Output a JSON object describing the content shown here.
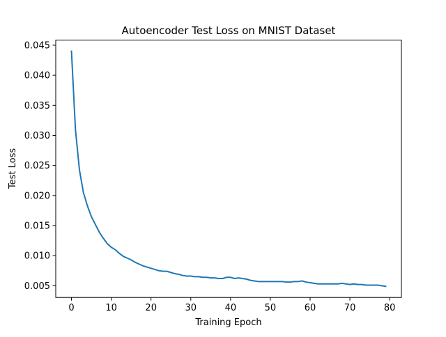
{
  "chart_data": {
    "type": "line",
    "title": "Autoencoder Test Loss on MNIST Dataset",
    "xlabel": "Training Epoch",
    "ylabel": "Test Loss",
    "xlim": [
      -3.95,
      82.95
    ],
    "ylim": [
      0.00305,
      0.04585
    ],
    "xticks": [
      0,
      10,
      20,
      30,
      40,
      50,
      60,
      70,
      80
    ],
    "xtick_labels": [
      "0",
      "10",
      "20",
      "30",
      "40",
      "50",
      "60",
      "70",
      "80"
    ],
    "yticks": [
      0.005,
      0.01,
      0.015,
      0.02,
      0.025,
      0.03,
      0.035,
      0.04,
      0.045
    ],
    "ytick_labels": [
      "0.005",
      "0.010",
      "0.015",
      "0.020",
      "0.025",
      "0.030",
      "0.035",
      "0.040",
      "0.045"
    ],
    "grid": false,
    "series": [
      {
        "color": "#1f77b4",
        "x": [
          0,
          1,
          2,
          3,
          4,
          5,
          6,
          7,
          8,
          9,
          10,
          11,
          12,
          13,
          14,
          15,
          16,
          17,
          18,
          19,
          20,
          21,
          22,
          23,
          24,
          25,
          26,
          27,
          28,
          29,
          30,
          31,
          32,
          33,
          34,
          35,
          36,
          37,
          38,
          39,
          40,
          41,
          42,
          43,
          44,
          45,
          46,
          47,
          48,
          49,
          50,
          51,
          52,
          53,
          54,
          55,
          56,
          57,
          58,
          59,
          60,
          61,
          62,
          63,
          64,
          65,
          66,
          67,
          68,
          69,
          70,
          71,
          72,
          73,
          74,
          75,
          76,
          77,
          78,
          79
        ],
        "y": [
          0.044,
          0.031,
          0.0243,
          0.0205,
          0.0183,
          0.0165,
          0.0152,
          0.0139,
          0.0129,
          0.012,
          0.0114,
          0.011,
          0.0104,
          0.0099,
          0.0096,
          0.0093,
          0.0089,
          0.0086,
          0.0083,
          0.0081,
          0.0079,
          0.0077,
          0.0075,
          0.0074,
          0.0074,
          0.0072,
          0.007,
          0.0069,
          0.0067,
          0.0066,
          0.0066,
          0.0065,
          0.0065,
          0.0064,
          0.0064,
          0.0063,
          0.0063,
          0.0062,
          0.0062,
          0.0064,
          0.0064,
          0.0062,
          0.0063,
          0.0062,
          0.0061,
          0.0059,
          0.0058,
          0.0057,
          0.0057,
          0.0057,
          0.0057,
          0.0057,
          0.0057,
          0.0057,
          0.0056,
          0.0056,
          0.0057,
          0.0057,
          0.0058,
          0.0056,
          0.0055,
          0.0054,
          0.0053,
          0.0053,
          0.0053,
          0.0053,
          0.0053,
          0.0053,
          0.0054,
          0.0053,
          0.0052,
          0.0053,
          0.0052,
          0.0052,
          0.0051,
          0.0051,
          0.0051,
          0.0051,
          0.005,
          0.0049
        ]
      }
    ]
  }
}
